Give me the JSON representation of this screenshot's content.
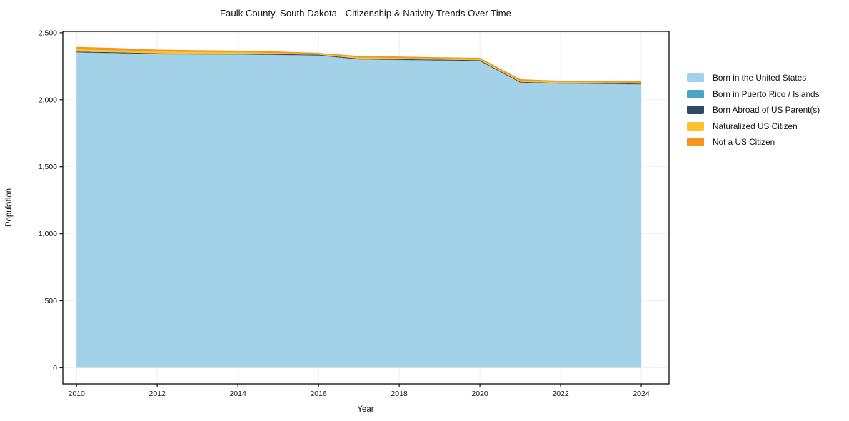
{
  "chart_data": {
    "type": "area",
    "stacked": true,
    "title": "Faulk County, South Dakota - Citizenship & Nativity Trends Over Time",
    "xlabel": "Year",
    "ylabel": "Population",
    "grid": true,
    "legend_position": "right",
    "xlim": [
      2009.66,
      2024.69
    ],
    "ylim": [
      -120,
      2510
    ],
    "x": [
      2010,
      2011,
      2012,
      2013,
      2014,
      2015,
      2016,
      2017,
      2018,
      2019,
      2020,
      2021,
      2022,
      2023,
      2024
    ],
    "x_tick_values": [
      2010,
      2012,
      2014,
      2016,
      2018,
      2020,
      2022,
      2024
    ],
    "x_tick_labels": [
      "2010",
      "2012",
      "2014",
      "2016",
      "2018",
      "2020",
      "2022",
      "2024"
    ],
    "y_tick_values": [
      0,
      500,
      1000,
      1500,
      2000,
      2500
    ],
    "y_tick_labels": [
      "0",
      "500",
      "1,000",
      "1,500",
      "2,000",
      "2,500"
    ],
    "series": [
      {
        "name": "Born in the United States",
        "color": "#a3d1e8",
        "values": [
          2352,
          2346,
          2339,
          2337,
          2336,
          2333,
          2329,
          2300,
          2296,
          2292,
          2288,
          2126,
          2119,
          2117,
          2113
        ]
      },
      {
        "name": "Born in Puerto Rico / Islands",
        "color": "#47a6c6",
        "values": [
          2,
          2,
          2,
          2,
          2,
          2,
          2,
          2,
          2,
          2,
          2,
          2,
          2,
          2,
          2
        ]
      },
      {
        "name": "Born Abroad of US Parent(s)",
        "color": "#2c4b5e",
        "values": [
          6,
          6,
          6,
          6,
          6,
          6,
          6,
          6,
          6,
          6,
          6,
          5,
          5,
          5,
          5
        ]
      },
      {
        "name": "Naturalized US Citizen",
        "color": "#fcc22e",
        "values": [
          16,
          15,
          13,
          12,
          11,
          8,
          6,
          8,
          8,
          8,
          7,
          7,
          6,
          6,
          5
        ]
      },
      {
        "name": "Not a US Citizen",
        "color": "#f7941e",
        "values": [
          19,
          17,
          14,
          13,
          11,
          11,
          7,
          11,
          11,
          9,
          10,
          13,
          10,
          10,
          16
        ]
      }
    ],
    "colors": {
      "spine": "#1a1a1a",
      "grid_vertical": "#ececec",
      "grid_horizontal": "#f1f1f1",
      "tick": "#111111"
    }
  }
}
